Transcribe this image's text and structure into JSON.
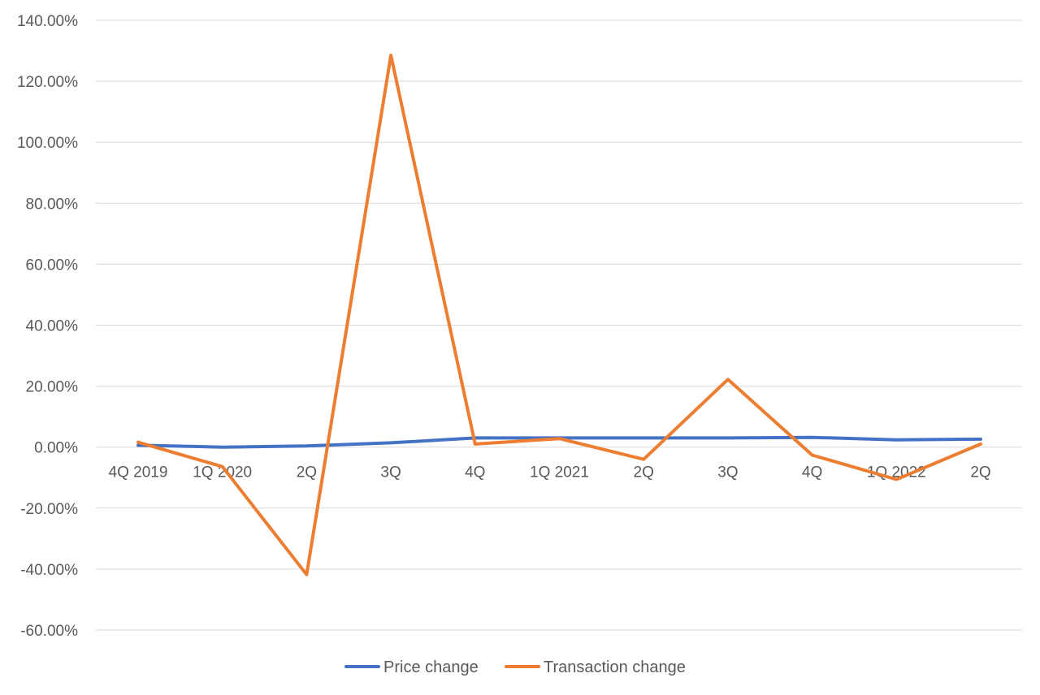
{
  "chart_data": {
    "type": "line",
    "categories": [
      "4Q 2019",
      "1Q 2020",
      "2Q",
      "3Q",
      "4Q",
      "1Q 2021",
      "2Q",
      "3Q",
      "4Q",
      "1Q 2022",
      "2Q"
    ],
    "series": [
      {
        "name": "Price change",
        "color": "#4472C4",
        "values": [
          0.6,
          0.0,
          0.4,
          1.4,
          3.0,
          3.0,
          3.0,
          3.0,
          3.2,
          2.4,
          2.6
        ]
      },
      {
        "name": "Transaction change",
        "color": "#ED7D31",
        "values": [
          1.6,
          -6.4,
          -41.8,
          128.5,
          1.0,
          2.8,
          -4.0,
          22.2,
          -2.6,
          -10.6,
          1.0
        ]
      }
    ],
    "y_ticks": [
      "140.00%",
      "120.00%",
      "100.00%",
      "80.00%",
      "60.00%",
      "40.00%",
      "20.00%",
      "0.00%",
      "-20.00%",
      "-40.00%",
      "-60.00%"
    ],
    "y_tick_values": [
      140,
      120,
      100,
      80,
      60,
      40,
      20,
      0,
      -20,
      -40,
      -60
    ],
    "ylim": [
      -60,
      140
    ],
    "y_unit": "percent",
    "grid": true,
    "legend_position": "bottom",
    "colors": {
      "gridline": "#d9d9d9",
      "text": "#595959"
    }
  }
}
